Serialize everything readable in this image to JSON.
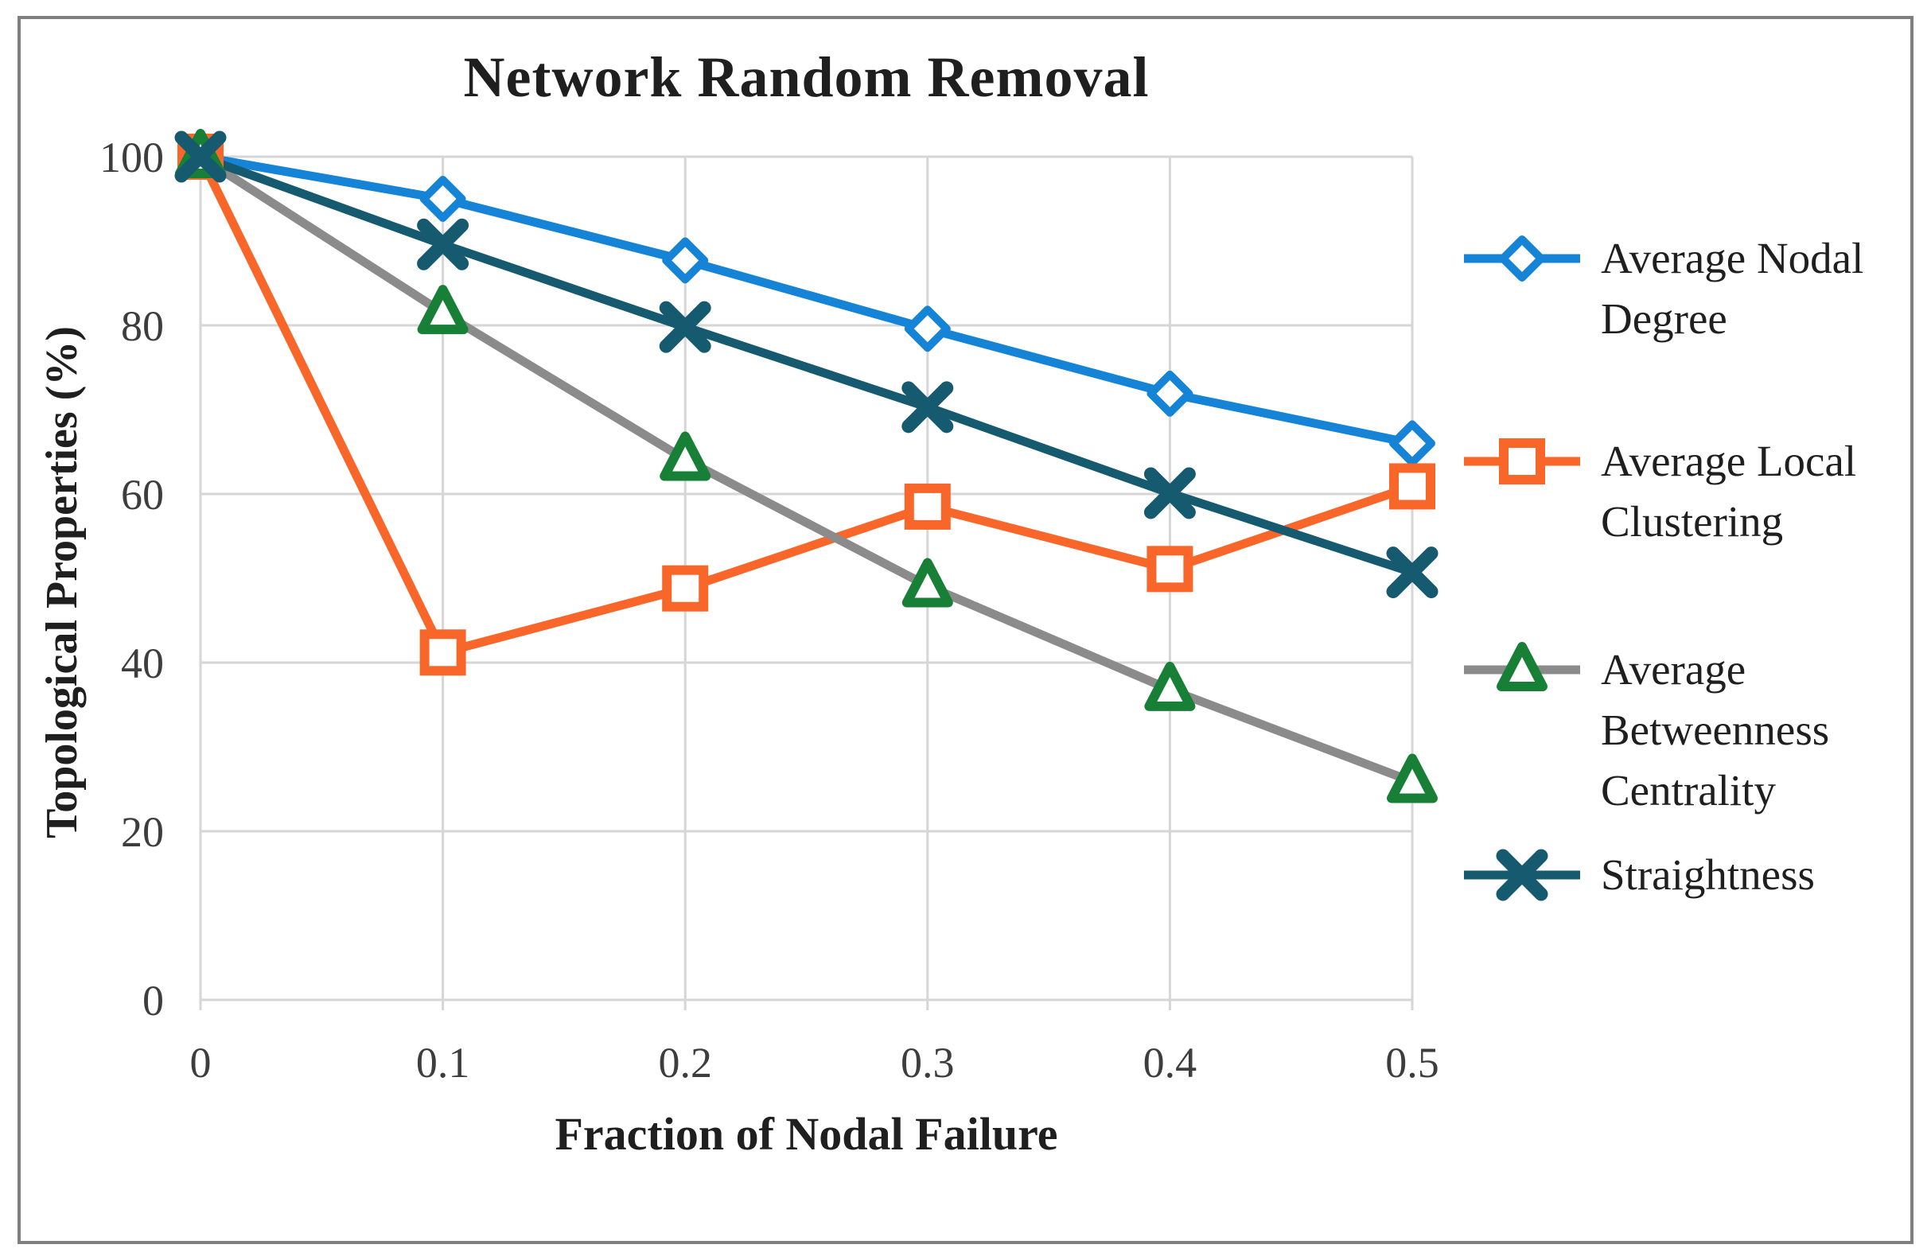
{
  "chart_data": {
    "type": "line",
    "title": "Network Random Removal",
    "xlabel": "Fraction of Nodal Failure",
    "ylabel": "Topological Properties (%)",
    "x": [
      0,
      0.1,
      0.2,
      0.3,
      0.4,
      0.5
    ],
    "xlim": [
      0,
      0.5
    ],
    "ylim": [
      0,
      100
    ],
    "x_tick_labels": [
      "0",
      "0.1",
      "0.2",
      "0.3",
      "0.4",
      "0.5"
    ],
    "y_tick_labels": [
      "0",
      "20",
      "40",
      "60",
      "80",
      "100"
    ],
    "grid": true,
    "legend_position": "right",
    "series": [
      {
        "name": "Average Nodal Degree",
        "marker": "diamond",
        "line_color": "#1584d6",
        "marker_color": "#1584d6",
        "values": [
          100,
          95.0,
          87.7,
          79.6,
          71.9,
          66.0
        ]
      },
      {
        "name": "Average Local Clustering",
        "marker": "square",
        "line_color": "#f9662a",
        "marker_color": "#f9662a",
        "values": [
          100,
          41.2,
          48.8,
          58.5,
          51.1,
          60.9
        ]
      },
      {
        "name": "Average Betweenness Centrality",
        "marker": "triangle",
        "line_color": "#8b8b8b",
        "marker_color": "#187f37",
        "values": [
          100,
          81.5,
          64.1,
          49.1,
          36.8,
          25.9
        ]
      },
      {
        "name": "Straightness",
        "marker": "x",
        "line_color": "#165a70",
        "marker_color": "#165a70",
        "values": [
          100,
          89.6,
          79.8,
          70.3,
          60.1,
          50.7
        ]
      }
    ],
    "colors": {
      "gridline": "#d6d6d6",
      "tick_text": "#3d3d3d",
      "text": "#1f1f1f",
      "frame_border": "#7f7f7f",
      "background": "#ffffff"
    }
  }
}
